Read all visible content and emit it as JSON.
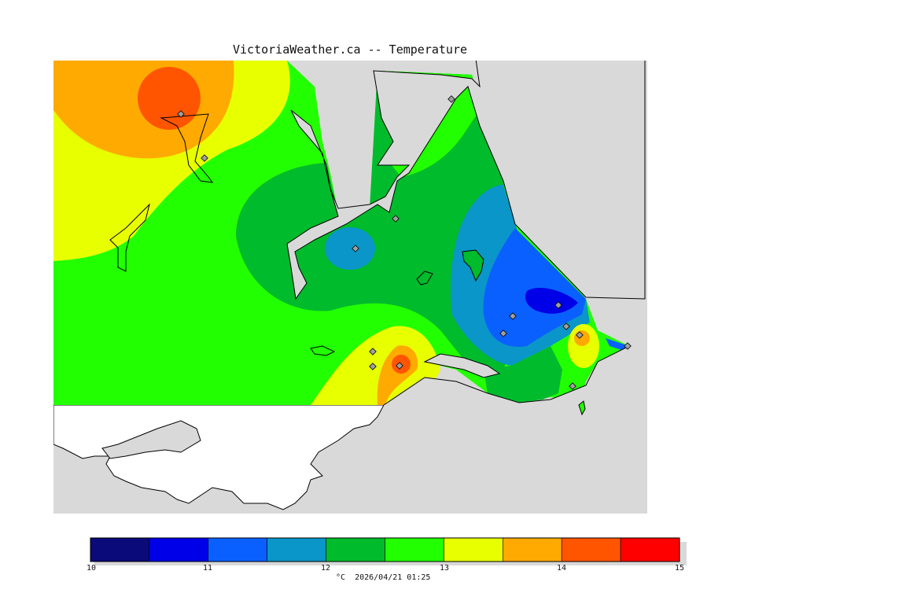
{
  "title": "VictoriaWeather.ca -- Temperature",
  "colorbar": {
    "min": 10,
    "max": 15,
    "step": 0.5,
    "colors": [
      "#0a0a7a",
      "#0000e8",
      "#0a60ff",
      "#0a96c8",
      "#00bb2c",
      "#22ff00",
      "#e8ff00",
      "#ffaa00",
      "#ff5500",
      "#ff0000"
    ],
    "ticks": [
      "10",
      "11",
      "12",
      "13",
      "14",
      "15"
    ],
    "caption": "°C  2026/04/21 01:25"
  },
  "map_colors": {
    "water": "#d9d9d9",
    "outside": "#ffffff",
    "coast": "#000000",
    "station": "#a0a0a0"
  },
  "stations_count_visible": 15
}
